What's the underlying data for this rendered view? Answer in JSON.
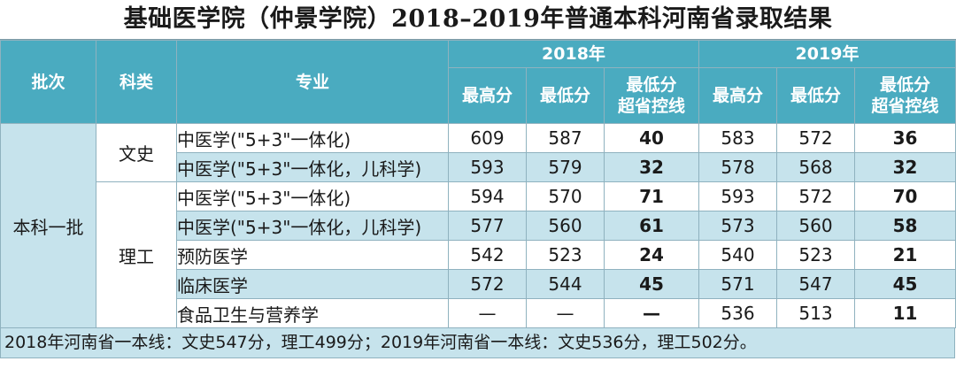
{
  "title": "基础医学院（仲景学院）2018–2019年普通本科河南省录取结果",
  "headers": {
    "batch": "批次",
    "category": "科类",
    "major": "专业",
    "year_a": "2018年",
    "year_b": "2019年",
    "max_score": "最高分",
    "min_score": "最低分",
    "over_line_1": "最低分",
    "over_line_2": "超省控线"
  },
  "batch": "本科一批",
  "categories": {
    "liberal": "文史",
    "science": "理工"
  },
  "rows": [
    {
      "major": "中医学(\"5+3\"一体化)",
      "max18": "609",
      "min18": "587",
      "over18": "40",
      "max19": "583",
      "min19": "572",
      "over19": "36"
    },
    {
      "major": "中医学(\"5+3\"一体化，儿科学)",
      "max18": "593",
      "min18": "579",
      "over18": "32",
      "max19": "578",
      "min19": "568",
      "over19": "32"
    },
    {
      "major": "中医学(\"5+3\"一体化)",
      "max18": "594",
      "min18": "570",
      "over18": "71",
      "max19": "593",
      "min19": "572",
      "over19": "70"
    },
    {
      "major": "中医学(\"5+3\"一体化，儿科学)",
      "max18": "577",
      "min18": "560",
      "over18": "61",
      "max19": "573",
      "min19": "560",
      "over19": "58"
    },
    {
      "major": "预防医学",
      "max18": "542",
      "min18": "523",
      "over18": "24",
      "max19": "540",
      "min19": "523",
      "over19": "21"
    },
    {
      "major": "临床医学",
      "max18": "572",
      "min18": "544",
      "over18": "45",
      "max19": "571",
      "min19": "547",
      "over19": "45"
    },
    {
      "major": "食品卫生与营养学",
      "max18": "—",
      "min18": "—",
      "over18": "—",
      "max19": "536",
      "min19": "513",
      "over19": "11"
    }
  ],
  "footnote": "2018年河南省一本线：文史547分，理工499分；2019年河南省一本线：文史536分，理工502分。"
}
